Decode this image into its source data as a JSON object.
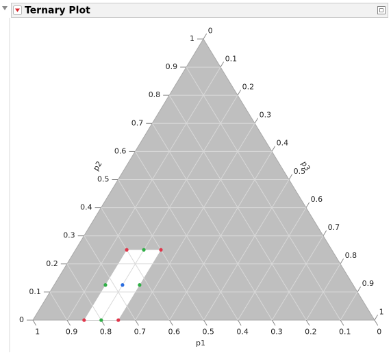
{
  "header": {
    "title": "Ternary Plot"
  },
  "chart_data": {
    "type": "ternary",
    "p1label": "p1",
    "p2label": "p2",
    "p3label": "p3",
    "p1lim": [
      0,
      1
    ],
    "p2lim": [
      0,
      1
    ],
    "p3lim": [
      0,
      1
    ],
    "p1ticks": [
      0,
      0.1,
      0.2,
      0.3,
      0.4,
      0.5,
      0.6,
      0.7,
      0.8,
      0.9,
      1
    ],
    "p2ticks": [
      0,
      0.1,
      0.2,
      0.3,
      0.4,
      0.5,
      0.6,
      0.7,
      0.8,
      0.9,
      1
    ],
    "p3ticks": [
      0,
      0.1,
      0.2,
      0.3,
      0.4,
      0.5,
      0.6,
      0.7,
      0.8,
      0.9,
      1
    ],
    "grid": true,
    "series": [
      {
        "color": "#e0364b",
        "p1": [
          0.85,
          0.75,
          0.6,
          0.5
        ],
        "p2": [
          0,
          0,
          0.25,
          0.25
        ],
        "p3": [
          0.15,
          0.25,
          0.15,
          0.25
        ]
      },
      {
        "color": "#2fae45",
        "p1": [
          0.8,
          0.725,
          0.625,
          0.55
        ],
        "p2": [
          0,
          0.125,
          0.125,
          0.25
        ],
        "p3": [
          0.2,
          0.15,
          0.25,
          0.2
        ]
      },
      {
        "color": "#2b6de0",
        "p1": [
          0.675
        ],
        "p2": [
          0.125
        ],
        "p3": [
          0.2
        ]
      }
    ]
  }
}
